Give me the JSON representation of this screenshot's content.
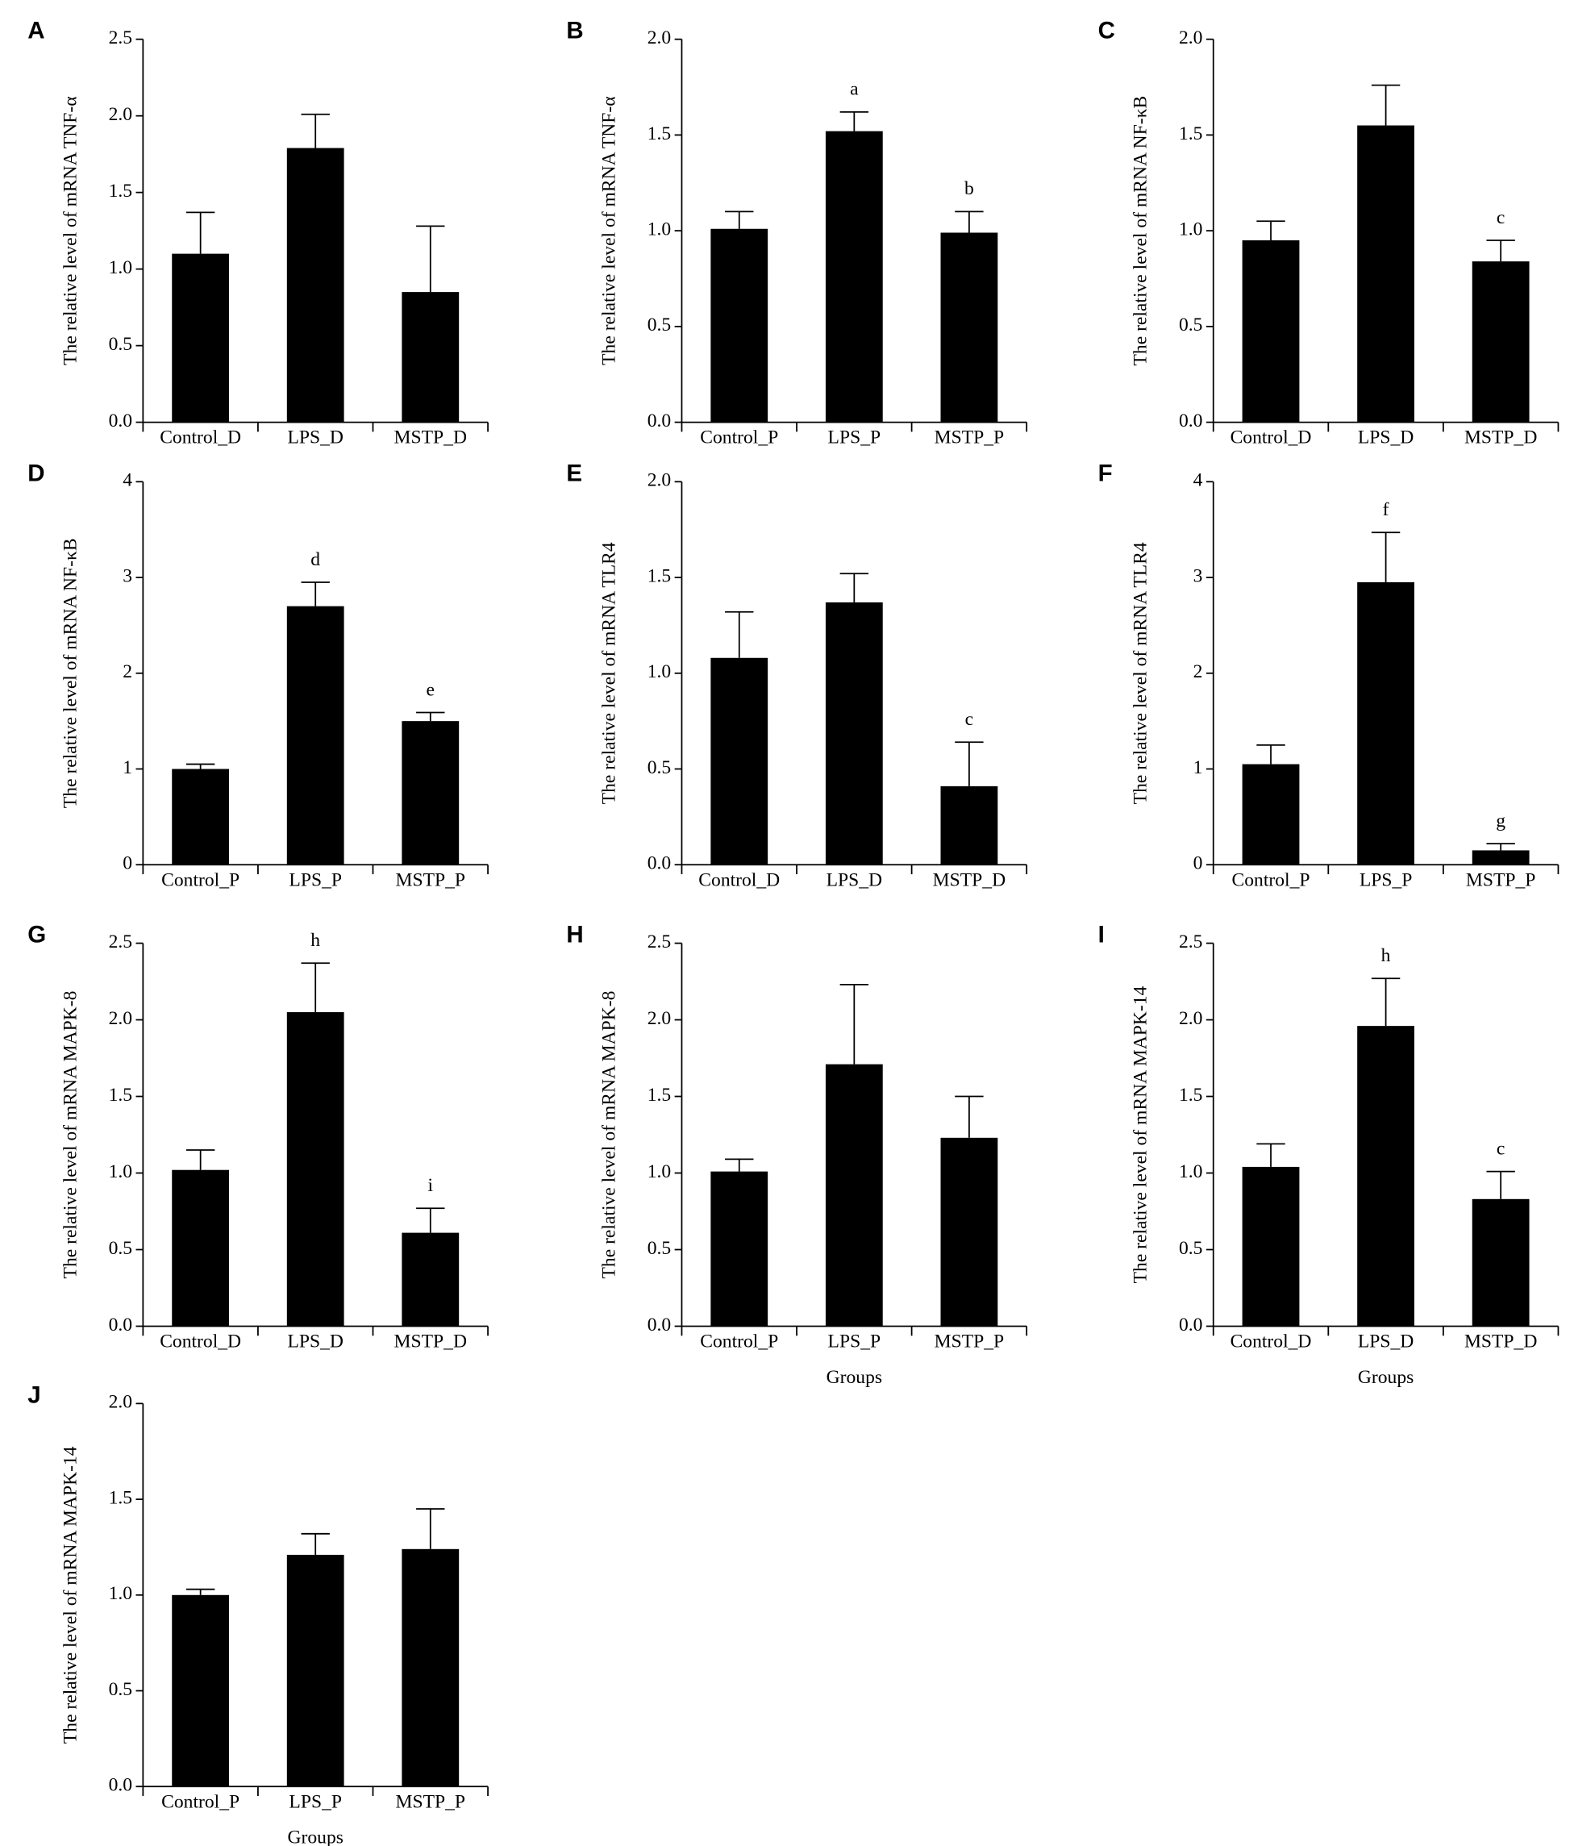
{
  "chart_data": [
    {
      "type": "bar",
      "panel": "A",
      "ylabel": "The relative level of mRNA  TNF-α",
      "categories": [
        "Control_D",
        "LPS_D",
        "MSTP_D"
      ],
      "values": [
        1.1,
        1.79,
        0.85
      ],
      "errors": [
        0.27,
        0.22,
        0.43
      ],
      "bar_labels": [
        null,
        null,
        null
      ],
      "color": "#000000",
      "ylim": [
        0,
        2.5
      ],
      "yticks": [
        {
          "value": 0,
          "label": "0.0"
        },
        0.5,
        {
          "value": 1,
          "label": "1.0"
        },
        1.5,
        {
          "value": 2,
          "label": "2.0"
        },
        2.5
      ]
    },
    {
      "type": "bar",
      "panel": "B",
      "ylabel": "The relative level of mRNA  TNF-α",
      "categories": [
        "Control_P",
        "LPS_P",
        "MSTP_P"
      ],
      "values": [
        1.01,
        1.52,
        0.99
      ],
      "errors": [
        0.09,
        0.1,
        0.11
      ],
      "bar_labels": [
        null,
        "a",
        "b"
      ],
      "color": "#000000",
      "ylim": [
        0,
        2
      ],
      "yticks": [
        {
          "value": 0,
          "label": "0.0"
        },
        0.5,
        {
          "value": 1,
          "label": "1.0"
        },
        1.5,
        {
          "value": 2,
          "label": "2.0"
        }
      ]
    },
    {
      "type": "bar",
      "panel": "C",
      "ylabel": "The relative level of mRNA NF-κB",
      "categories": [
        "Control_D",
        "LPS_D",
        "MSTP_D"
      ],
      "values": [
        0.95,
        1.55,
        0.84
      ],
      "errors": [
        0.1,
        0.21,
        0.11
      ],
      "bar_labels": [
        null,
        null,
        "c"
      ],
      "color": "#000000",
      "ylim": [
        0,
        2
      ],
      "yticks": [
        {
          "value": 0,
          "label": "0.0"
        },
        0.5,
        {
          "value": 1,
          "label": "1.0"
        },
        1.5,
        {
          "value": 2,
          "label": "2.0"
        }
      ]
    },
    {
      "type": "bar",
      "panel": "D",
      "ylabel": "The relative level of mRNA NF-κB",
      "categories": [
        "Control_P",
        "LPS_P",
        "MSTP_P"
      ],
      "values": [
        1.0,
        2.7,
        1.5
      ],
      "errors": [
        0.05,
        0.25,
        0.09
      ],
      "bar_labels": [
        null,
        "d",
        "e"
      ],
      "color": "#000000",
      "ylim": [
        0,
        4
      ],
      "yticks": [
        0,
        1,
        2,
        3,
        4
      ]
    },
    {
      "type": "bar",
      "panel": "E",
      "ylabel": "The relative level of mRNA TLR4",
      "categories": [
        "Control_D",
        "LPS_D",
        "MSTP_D"
      ],
      "values": [
        1.08,
        1.37,
        0.41
      ],
      "errors": [
        0.24,
        0.15,
        0.23
      ],
      "bar_labels": [
        null,
        null,
        "c"
      ],
      "color": "#000000",
      "ylim": [
        0,
        2
      ],
      "yticks": [
        {
          "value": 0,
          "label": "0.0"
        },
        0.5,
        {
          "value": 1,
          "label": "1.0"
        },
        1.5,
        {
          "value": 2,
          "label": "2.0"
        }
      ]
    },
    {
      "type": "bar",
      "panel": "F",
      "ylabel": "The relative level of mRNA TLR4",
      "categories": [
        "Control_P",
        "LPS_P",
        "MSTP_P"
      ],
      "values": [
        1.05,
        2.95,
        0.15
      ],
      "errors": [
        0.2,
        0.52,
        0.07
      ],
      "bar_labels": [
        null,
        "f",
        "g"
      ],
      "color": "#000000",
      "ylim": [
        0,
        4
      ],
      "yticks": [
        0,
        1,
        2,
        3,
        4
      ]
    },
    {
      "type": "bar",
      "panel": "G",
      "ylabel": "The relative level of mRNA MAPK-8",
      "categories": [
        "Control_D",
        "LPS_D",
        "MSTP_D"
      ],
      "values": [
        1.02,
        2.05,
        0.61
      ],
      "errors": [
        0.13,
        0.32,
        0.16
      ],
      "bar_labels": [
        null,
        "h",
        "i"
      ],
      "color": "#000000",
      "ylim": [
        0,
        2.5
      ],
      "yticks": [
        {
          "value": 0,
          "label": "0.0"
        },
        0.5,
        {
          "value": 1,
          "label": "1.0"
        },
        1.5,
        {
          "value": 2,
          "label": "2.0"
        },
        2.5
      ]
    },
    {
      "type": "bar",
      "panel": "H",
      "ylabel": "The relative level of mRNA MAPK-8",
      "xlabel": "Groups",
      "categories": [
        "Control_P",
        "LPS_P",
        "MSTP_P"
      ],
      "values": [
        1.01,
        1.71,
        1.23
      ],
      "errors": [
        0.08,
        0.52,
        0.27
      ],
      "bar_labels": [
        null,
        null,
        null
      ],
      "color": "#000000",
      "ylim": [
        0,
        2.5
      ],
      "yticks": [
        {
          "value": 0,
          "label": "0.0"
        },
        0.5,
        {
          "value": 1,
          "label": "1.0"
        },
        1.5,
        {
          "value": 2,
          "label": "2.0"
        },
        2.5
      ]
    },
    {
      "type": "bar",
      "panel": "I",
      "ylabel": "The relative level of mRNA MAPK-14",
      "xlabel": "Groups",
      "categories": [
        "Control_D",
        "LPS_D",
        "MSTP_D"
      ],
      "values": [
        1.04,
        1.96,
        0.83
      ],
      "errors": [
        0.15,
        0.31,
        0.18
      ],
      "bar_labels": [
        null,
        "h",
        "c"
      ],
      "color": "#000000",
      "ylim": [
        0,
        2.5
      ],
      "yticks": [
        {
          "value": 0,
          "label": "0.0"
        },
        0.5,
        {
          "value": 1,
          "label": "1.0"
        },
        1.5,
        {
          "value": 2,
          "label": "2.0"
        },
        2.5
      ]
    },
    {
      "type": "bar",
      "panel": "J",
      "ylabel": "The relative level of mRNA MAPK-14",
      "xlabel": "Groups",
      "categories": [
        "Control_P",
        "LPS_P",
        "MSTP_P"
      ],
      "values": [
        1.0,
        1.21,
        1.24
      ],
      "errors": [
        0.03,
        0.11,
        0.21
      ],
      "bar_labels": [
        null,
        null,
        null
      ],
      "color": "#000000",
      "ylim": [
        0,
        2
      ],
      "yticks": [
        {
          "value": 0,
          "label": "0.0"
        },
        0.5,
        {
          "value": 1,
          "label": "1.0"
        },
        1.5,
        {
          "value": 2,
          "label": "2.0"
        }
      ]
    }
  ]
}
